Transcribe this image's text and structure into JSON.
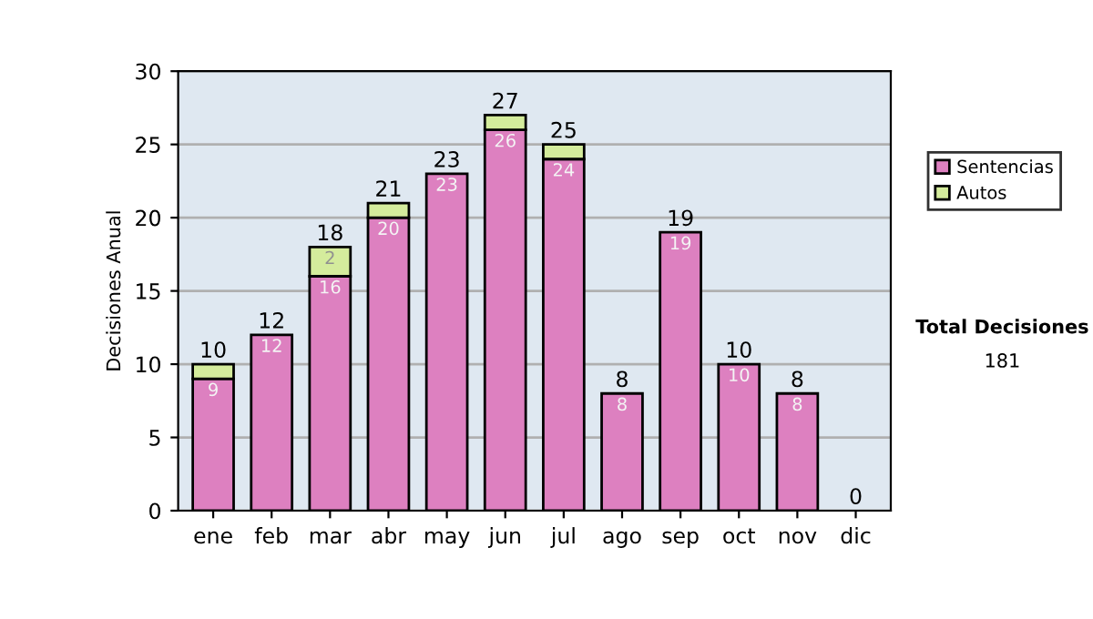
{
  "chart_data": {
    "type": "bar",
    "stacked": true,
    "ylabel": "Decisiones Anual",
    "categories": [
      "ene",
      "feb",
      "mar",
      "abr",
      "may",
      "jun",
      "jul",
      "ago",
      "sep",
      "oct",
      "nov",
      "dic"
    ],
    "series": [
      {
        "name": "Sentencias",
        "color": "#dd80c0",
        "values": [
          9,
          12,
          16,
          20,
          23,
          26,
          24,
          8,
          19,
          10,
          8,
          0
        ],
        "value_labels": [
          "9",
          "12",
          "16",
          "20",
          "23",
          "26",
          "24",
          "8",
          "19",
          "10",
          "8",
          null
        ]
      },
      {
        "name": "Autos",
        "color": "#d4ec9c",
        "values": [
          1,
          0,
          2,
          1,
          0,
          1,
          1,
          0,
          0,
          0,
          0,
          0
        ],
        "value_labels": [
          null,
          null,
          "2",
          null,
          null,
          null,
          null,
          null,
          null,
          null,
          null,
          null
        ]
      }
    ],
    "totals": [
      "10",
      "12",
      "18",
      "21",
      "23",
      "27",
      "25",
      "8",
      "19",
      "10",
      "8",
      "0"
    ],
    "ylim": [
      0,
      30
    ],
    "yticks": [
      0,
      5,
      10,
      15,
      20,
      25,
      30
    ],
    "grid": "y",
    "legend": "right",
    "annotations": [
      "Total Decisiones",
      "181"
    ]
  }
}
